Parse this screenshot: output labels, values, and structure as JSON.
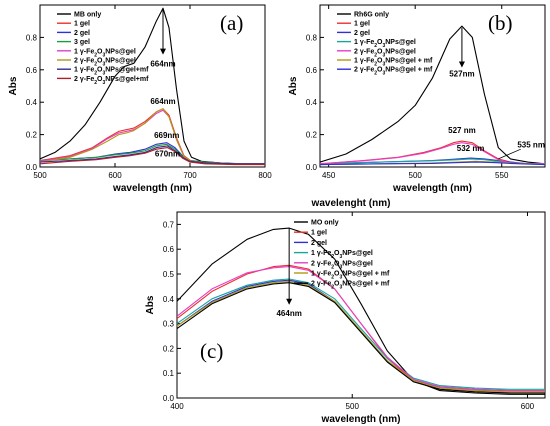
{
  "colors": {
    "black": "#000000",
    "red": "#e8322d",
    "blue": "#2f2fd8",
    "green": "#1e9e3a",
    "magenta": "#e83cc8",
    "olive": "#b29a14",
    "navy": "#3a2a8a",
    "darkred": "#b01e2e",
    "teal": "#1aa59c",
    "pink": "#d25ad6",
    "lightblue": "#4aa3e0"
  },
  "chart_data": [
    {
      "type": "line",
      "panel_label": "(a)",
      "xlabel": "wavelength (nm)",
      "ylabel": "Abs",
      "xlim": [
        500,
        800
      ],
      "ylim": [
        0,
        1.0
      ],
      "xticks": [
        500,
        600,
        700,
        800
      ],
      "yticks": [
        0.0,
        0.2,
        0.4,
        0.6,
        0.8
      ],
      "legend_position": "top-left",
      "series": [
        {
          "name": "MB only",
          "color_key": "black",
          "x": [
            500,
            520,
            540,
            560,
            580,
            600,
            612,
            625,
            640,
            655,
            664,
            672,
            682,
            692,
            702,
            715,
            740,
            770,
            800
          ],
          "y": [
            0.05,
            0.09,
            0.16,
            0.26,
            0.4,
            0.56,
            0.62,
            0.64,
            0.74,
            0.9,
            0.98,
            0.86,
            0.48,
            0.16,
            0.06,
            0.035,
            0.025,
            0.02,
            0.02
          ]
        },
        {
          "name": "1 gel",
          "color_key": "red",
          "x": [
            500,
            540,
            570,
            590,
            605,
            615,
            625,
            640,
            655,
            664,
            672,
            682,
            692,
            702,
            720,
            760,
            800
          ],
          "y": [
            0.04,
            0.07,
            0.12,
            0.18,
            0.22,
            0.23,
            0.24,
            0.28,
            0.34,
            0.36,
            0.32,
            0.18,
            0.07,
            0.035,
            0.025,
            0.02,
            0.02
          ]
        },
        {
          "name": "2 gel",
          "color_key": "blue",
          "x": [
            500,
            540,
            575,
            600,
            620,
            640,
            655,
            669,
            680,
            690,
            700,
            720,
            760,
            800
          ],
          "y": [
            0.04,
            0.05,
            0.06,
            0.08,
            0.09,
            0.11,
            0.14,
            0.15,
            0.12,
            0.07,
            0.04,
            0.03,
            0.02,
            0.02
          ]
        },
        {
          "name": "3 gel",
          "color_key": "green",
          "x": [
            500,
            540,
            575,
            600,
            620,
            640,
            655,
            669,
            680,
            690,
            700,
            720,
            760,
            800
          ],
          "y": [
            0.04,
            0.05,
            0.06,
            0.075,
            0.085,
            0.1,
            0.13,
            0.14,
            0.11,
            0.065,
            0.04,
            0.03,
            0.02,
            0.02
          ]
        },
        {
          "name": "1 γ-Fe2O3NPs@gel",
          "color_key": "magenta",
          "x": [
            500,
            540,
            570,
            590,
            605,
            615,
            625,
            640,
            655,
            664,
            672,
            682,
            692,
            702,
            720,
            760,
            800
          ],
          "y": [
            0.035,
            0.065,
            0.115,
            0.175,
            0.21,
            0.22,
            0.23,
            0.27,
            0.33,
            0.35,
            0.31,
            0.17,
            0.065,
            0.035,
            0.025,
            0.02,
            0.02
          ]
        },
        {
          "name": "2 γ-Fe2O3NPs@gel",
          "color_key": "olive",
          "x": [
            500,
            540,
            570,
            590,
            605,
            615,
            625,
            640,
            655,
            664,
            672,
            682,
            692,
            702,
            720,
            760,
            800
          ],
          "y": [
            0.03,
            0.06,
            0.11,
            0.16,
            0.2,
            0.21,
            0.225,
            0.27,
            0.34,
            0.36,
            0.31,
            0.17,
            0.065,
            0.035,
            0.025,
            0.02,
            0.02
          ]
        },
        {
          "name": "1 γ-Fe2O3NPs@gel+mf",
          "color_key": "navy",
          "x": [
            500,
            540,
            575,
            600,
            620,
            640,
            655,
            670,
            680,
            690,
            700,
            720,
            760,
            800
          ],
          "y": [
            0.03,
            0.04,
            0.05,
            0.065,
            0.075,
            0.09,
            0.12,
            0.13,
            0.1,
            0.06,
            0.035,
            0.025,
            0.02,
            0.02
          ]
        },
        {
          "name": "2 γ-Fe2O3NPs@gel+mf",
          "color_key": "darkred",
          "x": [
            500,
            540,
            575,
            600,
            620,
            640,
            655,
            670,
            680,
            690,
            700,
            720,
            760,
            800
          ],
          "y": [
            0.02,
            0.035,
            0.045,
            0.06,
            0.07,
            0.085,
            0.11,
            0.12,
            0.095,
            0.055,
            0.03,
            0.02,
            0.015,
            0.015
          ]
        }
      ],
      "annotations": [
        {
          "text": "664nm",
          "x": 664,
          "y": 0.62
        },
        {
          "text": "664nm",
          "x": 664,
          "y": 0.39
        },
        {
          "text": "669nm",
          "x": 669,
          "y": 0.18
        },
        {
          "text": "670nm",
          "x": 670,
          "y": 0.065
        }
      ],
      "arrow": {
        "x": 664,
        "y_from": 0.97,
        "y_to": 0.7
      }
    },
    {
      "type": "line",
      "panel_label": "(b)",
      "xlabel": "wavelength (nm)",
      "ylabel": "Abs",
      "xlim": [
        445,
        575
      ],
      "ylim": [
        0,
        1.0
      ],
      "xticks": [
        450,
        500,
        550
      ],
      "yticks": [
        0.0,
        0.2,
        0.4,
        0.6,
        0.8
      ],
      "legend_position": "top-left",
      "series": [
        {
          "name": "Rh6G only",
          "color_key": "black",
          "x": [
            445,
            460,
            475,
            490,
            500,
            510,
            520,
            527,
            533,
            540,
            548,
            555,
            565,
            575
          ],
          "y": [
            0.03,
            0.08,
            0.17,
            0.28,
            0.38,
            0.55,
            0.79,
            0.87,
            0.8,
            0.45,
            0.12,
            0.05,
            0.03,
            0.02
          ]
        },
        {
          "name": "1 gel",
          "color_key": "red",
          "x": [
            445,
            470,
            490,
            505,
            515,
            522,
            527,
            533,
            540,
            548,
            555,
            565,
            575
          ],
          "y": [
            0.02,
            0.04,
            0.06,
            0.09,
            0.12,
            0.15,
            0.16,
            0.15,
            0.1,
            0.05,
            0.03,
            0.02,
            0.02
          ]
        },
        {
          "name": "2 gel",
          "color_key": "blue",
          "x": [
            445,
            480,
            510,
            525,
            532,
            540,
            548,
            555,
            565,
            575
          ],
          "y": [
            0.02,
            0.03,
            0.04,
            0.05,
            0.055,
            0.05,
            0.04,
            0.03,
            0.02,
            0.02
          ]
        },
        {
          "name": "1 γ-Fe2O3NPs@gel",
          "color_key": "teal",
          "x": [
            445,
            480,
            510,
            525,
            532,
            540,
            548,
            555,
            565,
            575
          ],
          "y": [
            0.02,
            0.03,
            0.038,
            0.045,
            0.05,
            0.045,
            0.035,
            0.025,
            0.02,
            0.02
          ]
        },
        {
          "name": "2 γ-Fe2O3NPs@gel",
          "color_key": "magenta",
          "x": [
            445,
            470,
            490,
            505,
            515,
            522,
            527,
            533,
            540,
            548,
            555,
            565,
            575
          ],
          "y": [
            0.02,
            0.038,
            0.058,
            0.085,
            0.115,
            0.14,
            0.15,
            0.14,
            0.095,
            0.045,
            0.025,
            0.02,
            0.02
          ]
        },
        {
          "name": "1 γ-Fe2O3NPs@gel + mf",
          "color_key": "olive",
          "x": [
            445,
            480,
            510,
            525,
            535,
            545,
            555,
            565,
            575
          ],
          "y": [
            0.015,
            0.02,
            0.025,
            0.03,
            0.035,
            0.03,
            0.025,
            0.02,
            0.015
          ]
        },
        {
          "name": "2 γ-Fe2O3NPs@gel + mf",
          "color_key": "blue",
          "x": [
            445,
            480,
            510,
            525,
            535,
            545,
            555,
            565,
            575
          ],
          "y": [
            0.015,
            0.02,
            0.022,
            0.027,
            0.03,
            0.027,
            0.022,
            0.018,
            0.015
          ]
        }
      ],
      "annotations": [
        {
          "text": "527nm",
          "x": 527,
          "y": 0.56
        },
        {
          "text": "527 nm",
          "x": 527,
          "y": 0.21
        },
        {
          "text": "532 nm",
          "x": 532,
          "y": 0.1
        },
        {
          "text": "535 nm",
          "x": 567,
          "y": 0.12
        }
      ],
      "arrow": {
        "x": 527,
        "y_from": 0.86,
        "y_to": 0.62
      }
    },
    {
      "type": "line",
      "panel_label": "(c)",
      "xlabel": "wavelength (nm)",
      "ylabel": "Abs",
      "top_xlabel": "wavelenght (nm)",
      "xlim": [
        400,
        610
      ],
      "ylim": [
        0.0,
        0.75
      ],
      "xticks": [
        400,
        500,
        600
      ],
      "yticks": [
        0.0,
        0.1,
        0.2,
        0.3,
        0.4,
        0.5,
        0.6,
        0.7
      ],
      "legend_position": "top-right",
      "series": [
        {
          "name": "MO only",
          "color_key": "black",
          "x": [
            400,
            420,
            440,
            455,
            464,
            475,
            490,
            505,
            520,
            535,
            550,
            570,
            590,
            610
          ],
          "y": [
            0.39,
            0.54,
            0.64,
            0.68,
            0.685,
            0.66,
            0.56,
            0.38,
            0.19,
            0.07,
            0.03,
            0.02,
            0.015,
            0.015
          ]
        },
        {
          "name": "1 gel",
          "color_key": "red",
          "x": [
            400,
            420,
            440,
            455,
            464,
            475,
            490,
            505,
            520,
            535,
            550,
            570,
            590,
            610
          ],
          "y": [
            0.32,
            0.43,
            0.5,
            0.53,
            0.535,
            0.52,
            0.44,
            0.3,
            0.16,
            0.07,
            0.04,
            0.03,
            0.03,
            0.03
          ]
        },
        {
          "name": "2 gel",
          "color_key": "blue",
          "x": [
            400,
            420,
            440,
            455,
            464,
            475,
            490,
            505,
            520,
            535,
            550,
            570,
            590,
            610
          ],
          "y": [
            0.29,
            0.39,
            0.45,
            0.47,
            0.475,
            0.46,
            0.39,
            0.27,
            0.15,
            0.07,
            0.045,
            0.035,
            0.03,
            0.03
          ]
        },
        {
          "name": "1 γ-Fe2O3NPs@gel",
          "color_key": "teal",
          "x": [
            400,
            420,
            440,
            455,
            464,
            475,
            490,
            505,
            520,
            535,
            550,
            570,
            590,
            610
          ],
          "y": [
            0.3,
            0.4,
            0.455,
            0.475,
            0.48,
            0.465,
            0.4,
            0.28,
            0.16,
            0.08,
            0.05,
            0.04,
            0.035,
            0.035
          ]
        },
        {
          "name": "2 γ-Fe2O3NPs@gel",
          "color_key": "magenta",
          "x": [
            400,
            420,
            440,
            455,
            464,
            475,
            490,
            505,
            520,
            535,
            550,
            570,
            590,
            610
          ],
          "y": [
            0.33,
            0.44,
            0.505,
            0.525,
            0.53,
            0.515,
            0.44,
            0.3,
            0.165,
            0.075,
            0.045,
            0.035,
            0.03,
            0.03
          ]
        },
        {
          "name": "1 γ-Fe2O3NPs@gel + mf",
          "color_key": "olive",
          "x": [
            400,
            420,
            440,
            455,
            464,
            475,
            490,
            505,
            520,
            535,
            550,
            570,
            590,
            610
          ],
          "y": [
            0.29,
            0.385,
            0.445,
            0.465,
            0.47,
            0.455,
            0.39,
            0.27,
            0.15,
            0.07,
            0.04,
            0.03,
            0.025,
            0.025
          ]
        },
        {
          "name": "2 γ-Fe2O3NPs@gel + mf",
          "color_key": "black",
          "x": [
            400,
            420,
            440,
            455,
            464,
            475,
            490,
            505,
            520,
            535,
            550,
            570,
            590,
            610
          ],
          "y": [
            0.28,
            0.38,
            0.44,
            0.46,
            0.465,
            0.45,
            0.385,
            0.265,
            0.145,
            0.065,
            0.035,
            0.025,
            0.02,
            0.02
          ]
        }
      ],
      "annotations": [
        {
          "text": "464nm",
          "x": 464,
          "y": 0.33
        }
      ],
      "arrow": {
        "x": 464,
        "y_from": 0.685,
        "y_to": 0.38
      }
    }
  ]
}
